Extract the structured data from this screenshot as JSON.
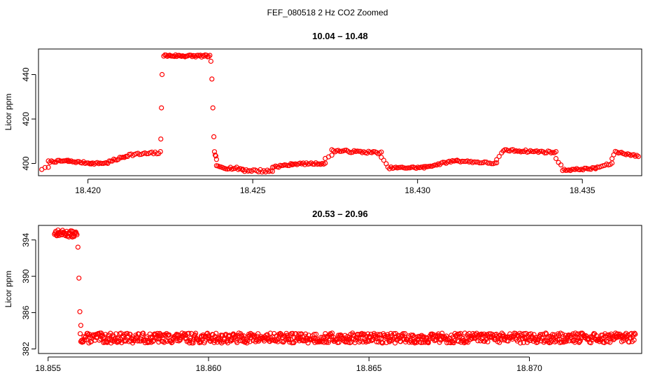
{
  "page_title": "FEF_080518  2 Hz CO2 Zoomed",
  "chart_data": [
    {
      "type": "scatter",
      "title": "10.04 – 10.48",
      "xlabel": "",
      "ylabel": "Licor ppm",
      "xlim": [
        18.4185,
        18.4368
      ],
      "ylim": [
        394.5,
        451.5
      ],
      "xticks": [
        {
          "value": 18.42,
          "label": "18.420"
        },
        {
          "value": 18.425,
          "label": "18.425"
        },
        {
          "value": 18.43,
          "label": "18.430"
        },
        {
          "value": 18.435,
          "label": "18.435"
        }
      ],
      "yticks": [
        {
          "value": 400,
          "label": "400"
        },
        {
          "value": 420,
          "label": "420"
        },
        {
          "value": 440,
          "label": "440"
        }
      ],
      "grid": false,
      "marker": "open-circle",
      "color": "#ff0000",
      "segments": [
        {
          "x0": 18.4186,
          "x1": 18.4188,
          "y0": 397.5,
          "y1": 398.2,
          "n": 3,
          "noise": 0.4
        },
        {
          "x0": 18.4188,
          "x1": 18.4194,
          "y0": 400.8,
          "y1": 401.2,
          "n": 14,
          "noise": 0.4
        },
        {
          "x0": 18.4194,
          "x1": 18.4201,
          "y0": 401.0,
          "y1": 400.1,
          "n": 16,
          "noise": 0.4
        },
        {
          "x0": 18.4201,
          "x1": 18.4206,
          "y0": 400.0,
          "y1": 400.2,
          "n": 12,
          "noise": 0.4
        },
        {
          "x0": 18.4206,
          "x1": 18.4212,
          "y0": 400.5,
          "y1": 403.5,
          "n": 14,
          "noise": 0.5
        },
        {
          "x0": 18.4212,
          "x1": 18.4222,
          "y0": 403.8,
          "y1": 404.8,
          "n": 20,
          "noise": 0.6
        },
        {
          "x0": 18.4222,
          "x1": 18.42222,
          "y0": 411.0,
          "y1": 411.0,
          "n": 1,
          "noise": 0
        },
        {
          "x0": 18.42222,
          "x1": 18.42224,
          "y0": 425.0,
          "y1": 425.0,
          "n": 1,
          "noise": 0
        },
        {
          "x0": 18.42224,
          "x1": 18.42226,
          "y0": 440.0,
          "y1": 440.0,
          "n": 1,
          "noise": 0
        },
        {
          "x0": 18.4223,
          "x1": 18.4237,
          "y0": 448.5,
          "y1": 448.3,
          "n": 40,
          "noise": 0.5
        },
        {
          "x0": 18.42372,
          "x1": 18.42374,
          "y0": 446.0,
          "y1": 446.0,
          "n": 1,
          "noise": 0
        },
        {
          "x0": 18.42375,
          "x1": 18.42377,
          "y0": 438.0,
          "y1": 438.0,
          "n": 1,
          "noise": 0
        },
        {
          "x0": 18.42378,
          "x1": 18.4238,
          "y0": 425.0,
          "y1": 425.0,
          "n": 1,
          "noise": 0
        },
        {
          "x0": 18.42381,
          "x1": 18.42383,
          "y0": 412.0,
          "y1": 412.0,
          "n": 1,
          "noise": 0
        },
        {
          "x0": 18.42384,
          "x1": 18.4239,
          "y0": 405.0,
          "y1": 402.0,
          "n": 4,
          "noise": 0.4
        },
        {
          "x0": 18.4239,
          "x1": 18.4247,
          "y0": 398.5,
          "y1": 397.5,
          "n": 18,
          "noise": 0.6
        },
        {
          "x0": 18.4247,
          "x1": 18.4256,
          "y0": 397.0,
          "y1": 396.5,
          "n": 18,
          "noise": 0.6
        },
        {
          "x0": 18.4256,
          "x1": 18.4262,
          "y0": 398.5,
          "y1": 399.5,
          "n": 14,
          "noise": 0.5
        },
        {
          "x0": 18.4262,
          "x1": 18.4272,
          "y0": 399.8,
          "y1": 400.0,
          "n": 22,
          "noise": 0.4
        },
        {
          "x0": 18.4272,
          "x1": 18.4274,
          "y0": 402.0,
          "y1": 404.0,
          "n": 3,
          "noise": 0.3
        },
        {
          "x0": 18.4274,
          "x1": 18.4289,
          "y0": 405.8,
          "y1": 404.8,
          "n": 32,
          "noise": 0.5
        },
        {
          "x0": 18.4289,
          "x1": 18.42905,
          "y0": 402.5,
          "y1": 400.0,
          "n": 3,
          "noise": 0.3
        },
        {
          "x0": 18.4291,
          "x1": 18.4302,
          "y0": 398.0,
          "y1": 398.2,
          "n": 24,
          "noise": 0.4
        },
        {
          "x0": 18.4302,
          "x1": 18.4312,
          "y0": 398.3,
          "y1": 401.5,
          "n": 22,
          "noise": 0.4
        },
        {
          "x0": 18.4312,
          "x1": 18.4324,
          "y0": 401.2,
          "y1": 400.0,
          "n": 24,
          "noise": 0.4
        },
        {
          "x0": 18.4324,
          "x1": 18.43255,
          "y0": 401.5,
          "y1": 404.5,
          "n": 3,
          "noise": 0.3
        },
        {
          "x0": 18.4326,
          "x1": 18.4342,
          "y0": 406.0,
          "y1": 405.0,
          "n": 34,
          "noise": 0.5
        },
        {
          "x0": 18.4342,
          "x1": 18.43435,
          "y0": 402.0,
          "y1": 399.5,
          "n": 3,
          "noise": 0.3
        },
        {
          "x0": 18.4344,
          "x1": 18.4354,
          "y0": 397.0,
          "y1": 397.8,
          "n": 22,
          "noise": 0.4
        },
        {
          "x0": 18.4354,
          "x1": 18.4359,
          "y0": 398.0,
          "y1": 400.0,
          "n": 10,
          "noise": 0.4
        },
        {
          "x0": 18.4359,
          "x1": 18.43595,
          "y0": 402.0,
          "y1": 404.0,
          "n": 2,
          "noise": 0.2
        },
        {
          "x0": 18.436,
          "x1": 18.4367,
          "y0": 405.3,
          "y1": 403.2,
          "n": 16,
          "noise": 0.4
        }
      ]
    },
    {
      "type": "scatter",
      "title": "20.53 – 20.96",
      "xlabel": "",
      "ylabel": "Licor ppm",
      "xlim": [
        18.8547,
        18.8735
      ],
      "ylim": [
        381.5,
        395.6
      ],
      "xticks": [
        {
          "value": 18.855,
          "label": "18.855"
        },
        {
          "value": 18.86,
          "label": "18.860"
        },
        {
          "value": 18.865,
          "label": "18.865"
        },
        {
          "value": 18.87,
          "label": "18.870"
        }
      ],
      "yticks": [
        {
          "value": 382,
          "label": "382"
        },
        {
          "value": 386,
          "label": "386"
        },
        {
          "value": 390,
          "label": "390"
        },
        {
          "value": 394,
          "label": "394"
        }
      ],
      "grid": false,
      "marker": "open-circle",
      "color": "#ff0000",
      "segments": [
        {
          "x0": 18.8552,
          "x1": 18.8559,
          "y0": 394.8,
          "y1": 394.6,
          "n": 40,
          "noise": 0.35
        },
        {
          "x0": 18.85592,
          "x1": 18.85594,
          "y0": 393.2,
          "y1": 393.2,
          "n": 1,
          "noise": 0
        },
        {
          "x0": 18.85595,
          "x1": 18.85597,
          "y0": 389.8,
          "y1": 389.8,
          "n": 1,
          "noise": 0
        },
        {
          "x0": 18.85598,
          "x1": 18.856,
          "y0": 386.1,
          "y1": 386.1,
          "n": 1,
          "noise": 0
        },
        {
          "x0": 18.85601,
          "x1": 18.85603,
          "y0": 384.6,
          "y1": 384.6,
          "n": 1,
          "noise": 0
        },
        {
          "x0": 18.856,
          "x1": 18.8733,
          "y0": 383.2,
          "y1": 383.2,
          "n": 900,
          "noise": 0.55
        }
      ]
    }
  ]
}
